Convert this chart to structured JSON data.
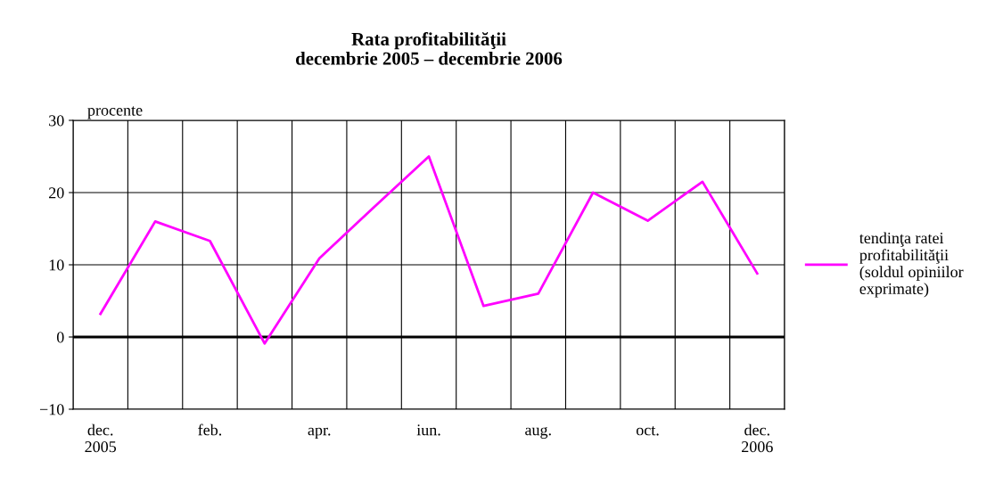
{
  "chart_data": {
    "type": "line",
    "title": "Rata profitabilităţii\ndecembrie 2005 – decembrie 2006",
    "ylabel": "procente",
    "categories": [
      "dec.\n2005",
      null,
      "feb.",
      null,
      "apr.",
      null,
      "iun.",
      null,
      "aug.",
      null,
      "oct.",
      null,
      "dec.\n2006"
    ],
    "series": [
      {
        "name": "tendinţa ratei\nprofitabilităţii\n(soldul opiniilor\nexprimate)",
        "color": "#ff00ff",
        "values": [
          3.2,
          16,
          13.3,
          -0.9,
          10.9,
          18,
          25,
          4.3,
          6,
          20,
          16.1,
          21.5,
          8.8
        ]
      }
    ],
    "ylim": [
      -10,
      30
    ],
    "yticks": [
      {
        "value": -10,
        "label": "−10"
      },
      0,
      10,
      20,
      30
    ],
    "ref_lines": [
      {
        "axis": "y",
        "value": 0,
        "color": "#000000"
      }
    ],
    "grid": true,
    "legend": "right",
    "marker": "none",
    "line_style": "solid"
  }
}
